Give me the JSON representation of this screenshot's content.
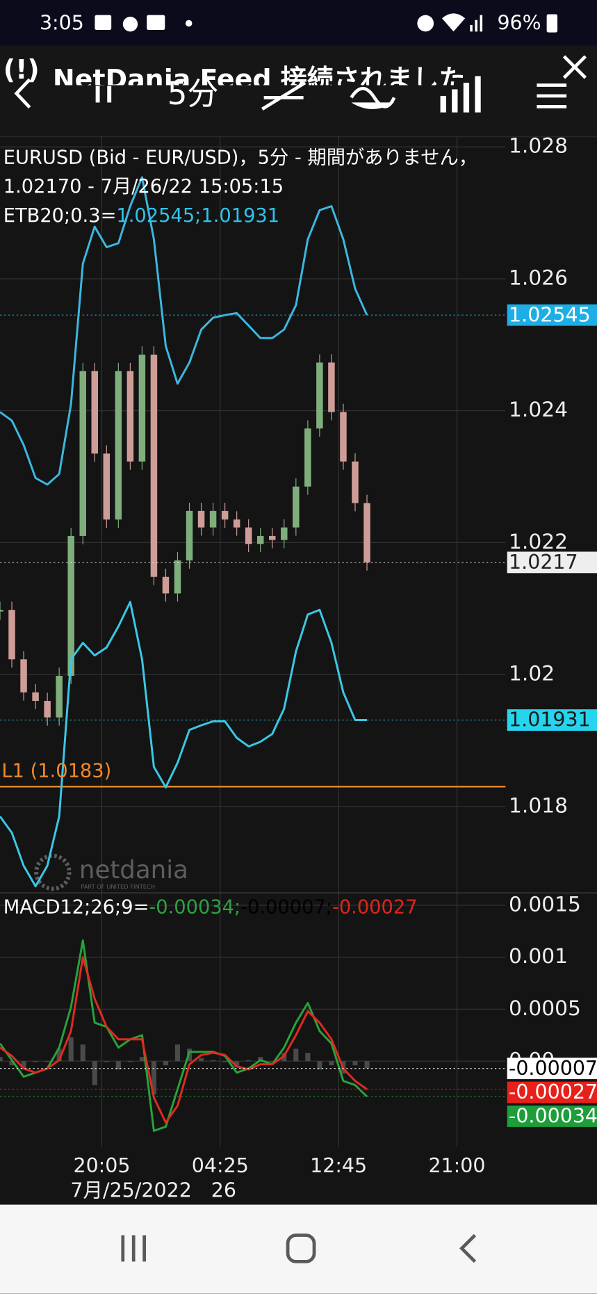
{
  "status_bar": {
    "time": "3:05",
    "battery": "96%"
  },
  "notification": {
    "icon": "(!)",
    "text": "NetDania Feed 接続されました"
  },
  "toolbar": {
    "interval": "5分"
  },
  "watermark": {
    "brand": "netdania",
    "tagline": "PART OF UNITED FINTECH"
  },
  "chart_data": [
    {
      "type": "line",
      "title": "EURUSD (Bid - EUR/USD)，5分 - 期間がありません，",
      "subtitle": "1.02170 - 7月/26/22 15:05:15",
      "indicator_label": "ETB20;0.3=",
      "indicator_value_label": "1.02545;1.01931",
      "indicator_color": "#2ec4ee",
      "x": [
        0,
        10,
        20,
        30,
        40,
        50,
        60,
        70,
        80,
        90,
        100,
        110,
        120,
        130,
        140,
        150,
        160,
        170,
        180,
        190,
        200,
        210,
        220,
        230,
        240,
        250,
        260,
        270,
        280,
        290,
        300,
        310
      ],
      "xlim": [
        0,
        427
      ],
      "ylim": [
        1.01669,
        1.02816
      ],
      "yticks": [
        1.028,
        1.026,
        1.024,
        1.022,
        1.02,
        1.018
      ],
      "grid": true,
      "series": [
        {
          "kind": "candle",
          "up_color": "#7fae7c",
          "down_color": "#cf9d97",
          "values": [
            1.02098,
            1.02023,
            1.01973,
            1.0196,
            1.01935,
            1.01998,
            1.0221,
            1.0246,
            1.02335,
            1.02235,
            1.0246,
            1.02323,
            1.02485,
            1.02148,
            1.02123,
            1.02173,
            1.02248,
            1.02223,
            1.02248,
            1.02235,
            1.02223,
            1.02198,
            1.0221,
            1.02204,
            1.02223,
            1.02285,
            1.02373,
            1.02473,
            1.02398,
            1.02323,
            1.0226,
            1.0217
          ]
        },
        {
          "kind": "line",
          "color": "#3bb8e0",
          "values": [
            1.02398,
            1.02385,
            1.02348,
            1.02298,
            1.02288,
            1.02304,
            1.0241,
            1.02623,
            1.02679,
            1.02648,
            1.02654,
            1.0271,
            1.02754,
            1.0266,
            1.02498,
            1.02441,
            1.02473,
            1.02523,
            1.02541,
            1.02545,
            1.02548,
            1.02529,
            1.0251,
            1.0251,
            1.02523,
            1.0256,
            1.0266,
            1.02704,
            1.0271,
            1.0266,
            1.02585,
            1.02545
          ]
        },
        {
          "kind": "line",
          "color": "#3bc8e6",
          "values": [
            1.01785,
            1.0176,
            1.0171,
            1.01679,
            1.0171,
            1.01785,
            1.02023,
            1.02048,
            1.02029,
            1.02041,
            1.02073,
            1.0211,
            1.02023,
            1.0186,
            1.01829,
            1.01866,
            1.01916,
            1.01923,
            1.01929,
            1.01929,
            1.01904,
            1.01891,
            1.01898,
            1.0191,
            1.01948,
            1.02035,
            1.02091,
            1.02098,
            1.02048,
            1.01973,
            1.01931,
            1.01931
          ]
        }
      ],
      "level": {
        "label": "L1 (1.0183)",
        "value": 1.0183,
        "color": "#f08a2c"
      },
      "price_labels": [
        {
          "value": 1.02545,
          "color": "#1eaee6",
          "text_color": "#ffffff"
        },
        {
          "value": 1.0217,
          "color": "#eeeeee",
          "text_color": "#222222"
        },
        {
          "value": 1.01931,
          "color": "#26d4ee",
          "text_color": "#1a1a1a"
        }
      ]
    },
    {
      "type": "line",
      "title": "MACD12;26;9=",
      "title_values": [
        {
          "text": "-0.00034;",
          "color": "#2ea043"
        },
        {
          "text": "-0.00007;",
          "color": "#000000"
        },
        {
          "text": "-0.00027",
          "color": "#e0241b"
        }
      ],
      "x": [
        0,
        10,
        20,
        30,
        40,
        50,
        60,
        70,
        80,
        90,
        100,
        110,
        120,
        130,
        140,
        150,
        160,
        170,
        180,
        190,
        200,
        210,
        220,
        230,
        240,
        250,
        260,
        270,
        280,
        290,
        300,
        310
      ],
      "xlim": [
        0,
        427
      ],
      "ylim": [
        -0.000825,
        0.001619
      ],
      "yticks": [
        0.0015,
        0.001,
        0.0005,
        {
          "value": 0,
          "label": "0.00"
        }
      ],
      "xticks": [
        {
          "value": 86,
          "label": "20:05"
        },
        {
          "value": 186,
          "label": "04:25"
        },
        {
          "value": 286,
          "label": "12:45"
        },
        {
          "value": 386,
          "label": "21:00"
        }
      ],
      "date_labels": [
        {
          "value": 86,
          "label": "7月/25/2022"
        },
        {
          "value": 186,
          "label": "26"
        }
      ],
      "grid": true,
      "series": [
        {
          "kind": "histogram",
          "color": "#4a4a4a",
          "values": [
            4e-05,
            -4e-05,
            -8e-05,
            0,
            0,
            0.00012,
            0.00023,
            0.00016,
            -0.00023,
            0,
            -8e-05,
            0,
            4e-05,
            -0.00032,
            -4e-05,
            0.00016,
            0.00012,
            3e-05,
            1e-05,
            -1e-05,
            -6e-05,
            1e-05,
            4e-05,
            0,
            8e-05,
            0.00012,
            8e-05,
            -8e-05,
            -4e-05,
            -0.00012,
            -4e-05,
            -7e-05
          ]
        },
        {
          "kind": "line",
          "color": "#27a33a",
          "values": [
            0.00017,
            1e-05,
            -0.00015,
            -0.00011,
            -7e-05,
            0.00013,
            0.00052,
            0.00116,
            0.00037,
            0.00033,
            0.00013,
            0.00021,
            0.00025,
            -0.00067,
            -0.00063,
            -0.00027,
            9e-05,
            9e-05,
            9e-05,
            5e-05,
            -0.00011,
            -7e-05,
            1e-05,
            -3e-05,
            0.00013,
            0.00037,
            0.00056,
            0.00029,
            0.00017,
            -0.00019,
            -0.00023,
            -0.00034
          ]
        },
        {
          "kind": "line",
          "color": "#e02a20",
          "values": [
            0.00013,
            5e-05,
            -7e-05,
            -0.00011,
            -7e-05,
            1e-05,
            0.00029,
            0.001,
            0.0006,
            0.00033,
            0.00021,
            0.00021,
            0.00021,
            -0.00035,
            -0.00059,
            -0.00043,
            -3e-05,
            6e-05,
            8e-05,
            6e-05,
            -5e-05,
            -8e-05,
            -3e-05,
            -3e-05,
            5e-05,
            0.00025,
            0.00048,
            0.00037,
            0.00021,
            -7e-05,
            -0.00019,
            -0.00027
          ]
        }
      ],
      "price_labels": [
        {
          "value": -7e-05,
          "color": "#ffffff",
          "text_color": "#000000"
        },
        {
          "value": -0.00027,
          "color": "#e8201a",
          "text_color": "#ffffff"
        },
        {
          "value": -0.00034,
          "color": "#1e9e3a",
          "text_color": "#ffffff"
        }
      ]
    }
  ]
}
